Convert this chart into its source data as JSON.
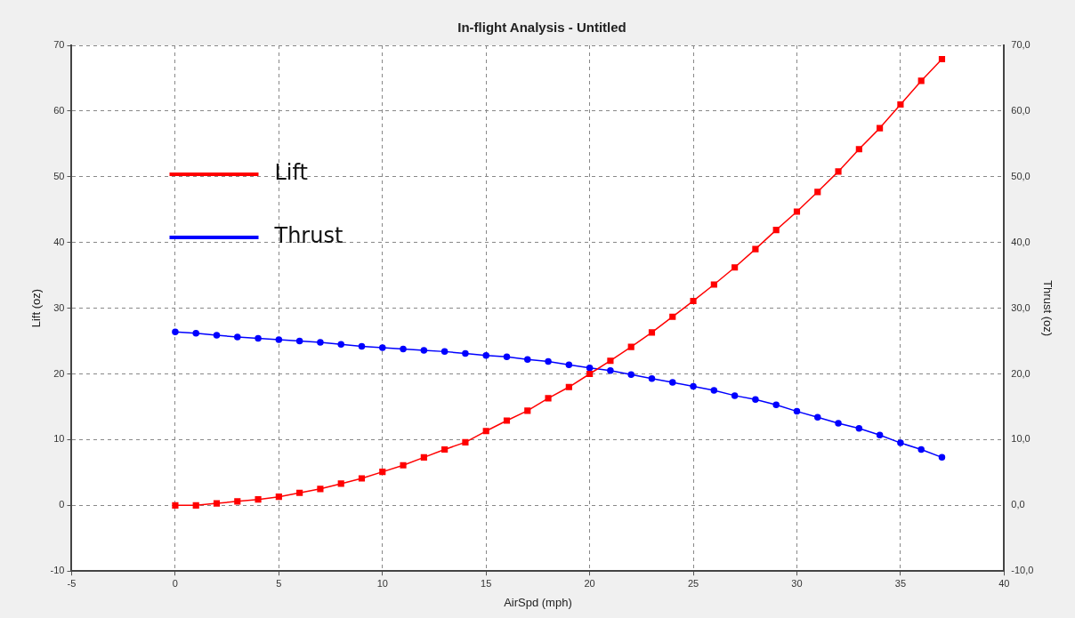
{
  "chart_data": {
    "type": "line",
    "title": "In-flight Analysis - Untitled",
    "xlabel": "AirSpd (mph)",
    "ylabel": "Lift (oz)",
    "y2label": "Thrust (oz)",
    "x": [
      0,
      1,
      2,
      3,
      4,
      5,
      6,
      7,
      8,
      9,
      10,
      11,
      12,
      13,
      14,
      15,
      16,
      17,
      18,
      19,
      20,
      21,
      22,
      23,
      24,
      25,
      26,
      27,
      28,
      29,
      30,
      31,
      32,
      33,
      34,
      35,
      36,
      37
    ],
    "series": [
      {
        "name": "Lift",
        "color": "#ff0000",
        "marker": "square",
        "values": [
          0,
          0,
          0.3,
          0.6,
          0.9,
          1.3,
          1.9,
          2.5,
          3.3,
          4.1,
          5.1,
          6.1,
          7.3,
          8.5,
          9.6,
          11.3,
          12.9,
          14.4,
          16.3,
          18.0,
          20.0,
          22.0,
          24.1,
          26.3,
          28.7,
          31.1,
          33.6,
          36.2,
          39.0,
          41.9,
          44.7,
          47.7,
          50.8,
          54.2,
          57.4,
          61.0,
          64.6,
          67.9
        ]
      },
      {
        "name": "Thrust",
        "color": "#0000ff",
        "marker": "circle",
        "axis": "y2",
        "values": [
          26.4,
          26.2,
          25.9,
          25.6,
          25.4,
          25.2,
          25.0,
          24.8,
          24.5,
          24.2,
          24.0,
          23.8,
          23.6,
          23.4,
          23.1,
          22.8,
          22.6,
          22.2,
          21.9,
          21.4,
          20.9,
          20.5,
          19.9,
          19.3,
          18.7,
          18.1,
          17.5,
          16.7,
          16.1,
          15.3,
          14.3,
          13.4,
          12.5,
          11.7,
          10.7,
          9.5,
          8.5,
          7.3
        ]
      }
    ],
    "xlim": [
      -5,
      40
    ],
    "xticks": [
      -5,
      0,
      5,
      10,
      15,
      20,
      25,
      30,
      35,
      40
    ],
    "ylim": [
      -10,
      70
    ],
    "yticks": [
      -10,
      0,
      10,
      20,
      30,
      40,
      50,
      60,
      70
    ],
    "y2lim": [
      -10,
      70
    ],
    "y2ticks": [
      {
        "value": -10,
        "label": "-10,0"
      },
      {
        "value": 0,
        "label": "0,0"
      },
      {
        "value": 10,
        "label": "10,0"
      },
      {
        "value": 20,
        "label": "20,0"
      },
      {
        "value": 30,
        "label": "30,0"
      },
      {
        "value": 40,
        "label": "40,0"
      },
      {
        "value": 50,
        "label": "50,0"
      },
      {
        "value": 60,
        "label": "60,0"
      },
      {
        "value": 70,
        "label": "70,0"
      }
    ],
    "grid": true,
    "legend": "top left",
    "line_style": "solid"
  }
}
